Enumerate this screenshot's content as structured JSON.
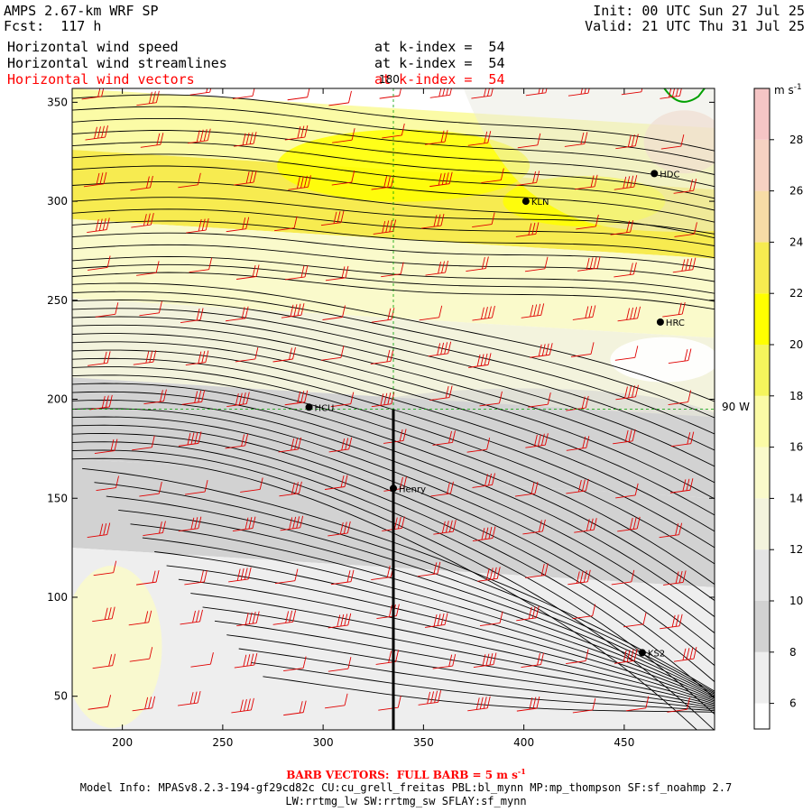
{
  "header": {
    "title": "AMPS 2.67-km WRF SP",
    "forecast": "Fcst:  117 h",
    "init": "Init: 00 UTC Sun 27 Jul 25",
    "valid": "Valid: 21 UTC Thu 31 Jul 25",
    "fields": [
      {
        "label": "Horizontal wind speed",
        "level": "at k-index =  54",
        "color": "#000000"
      },
      {
        "label": "Horizontal wind streamlines",
        "level": "at k-index =  54",
        "color": "#000000"
      },
      {
        "label": "Horizontal wind vectors",
        "level": "at k-index =  54",
        "color": "#ff0000"
      }
    ]
  },
  "map_labels": {
    "lon_top": "180",
    "lon_right": "90 W",
    "stations": [
      {
        "name": "KLN"
      },
      {
        "name": "HDC"
      },
      {
        "name": "HRC"
      },
      {
        "name": "HCU"
      },
      {
        "name": "Henry"
      },
      {
        "name": "KS2"
      }
    ]
  },
  "colorbar": {
    "unit": "m s",
    "unit_exp": "-1",
    "ticks": [
      "6",
      "8",
      "10",
      "12",
      "14",
      "16",
      "18",
      "20",
      "22",
      "24",
      "26",
      "28"
    ],
    "bins": [
      {
        "min": 5,
        "max": 6,
        "color": "#ffffff"
      },
      {
        "min": 6,
        "max": 8,
        "color": "#eeeeee"
      },
      {
        "min": 8,
        "max": 10,
        "color": "#d2d2d2"
      },
      {
        "min": 10,
        "max": 12,
        "color": "#e4e4e4"
      },
      {
        "min": 12,
        "max": 14,
        "color": "#f3f3dd"
      },
      {
        "min": 14,
        "max": 16,
        "color": "#fafacb"
      },
      {
        "min": 16,
        "max": 18,
        "color": "#fbfba6"
      },
      {
        "min": 18,
        "max": 20,
        "color": "#f5f55c"
      },
      {
        "min": 20,
        "max": 22,
        "color": "#ffff00"
      },
      {
        "min": 22,
        "max": 24,
        "color": "#f7eb50"
      },
      {
        "min": 24,
        "max": 26,
        "color": "#f7dca6"
      },
      {
        "min": 26,
        "max": 28,
        "color": "#f6d2c2"
      },
      {
        "min": 28,
        "max": 30,
        "color": "#f5c5c5"
      }
    ]
  },
  "footer": {
    "barb_note": "BARB VECTORS:  FULL BARB = 5 m s",
    "barb_exp": "-1",
    "model_info": "Model Info: MPASv8.2.3-194-gf29cd82c CU:cu_grell_freitas PBL:bl_mynn MP:mp_thompson SF:sf_noahmp 2.7",
    "model_info2": "LW:rrtmg_lw SW:rrtmg_sw SFLAY:sf_mynn"
  },
  "chart_data": {
    "type": "heatmap",
    "xlim": [
      175,
      495
    ],
    "ylim": [
      33,
      357
    ],
    "x_ticks": [
      200,
      250,
      300,
      350,
      400,
      450
    ],
    "y_ticks": [
      50,
      100,
      150,
      200,
      250,
      300,
      350
    ],
    "value_range": [
      5,
      30
    ],
    "value_unit": "m s-1",
    "stations": [
      {
        "name": "KLN",
        "x": 401,
        "y": 300
      },
      {
        "name": "HDC",
        "x": 465,
        "y": 314
      },
      {
        "name": "HRC",
        "x": 468,
        "y": 239
      },
      {
        "name": "HCU",
        "x": 293,
        "y": 196
      },
      {
        "name": "Henry",
        "x": 335,
        "y": 155
      },
      {
        "name": "KS2",
        "x": 459,
        "y": 72
      }
    ],
    "reference_lines": {
      "lon_180_x": 335,
      "lon_90W_y": 195
    },
    "cross_section": {
      "x": 335,
      "y_from": 33,
      "y_to": 195
    },
    "wind_speed_bands": [
      {
        "y_center": 340,
        "value": 16
      },
      {
        "y_center": 312,
        "value": 22
      },
      {
        "y_center": 270,
        "value": 14
      },
      {
        "y_center": 232,
        "value": 13
      },
      {
        "y_center": 190,
        "value": 9
      },
      {
        "y_center": 150,
        "value": 8
      },
      {
        "y_center": 100,
        "value": 6
      }
    ],
    "grid": true
  }
}
